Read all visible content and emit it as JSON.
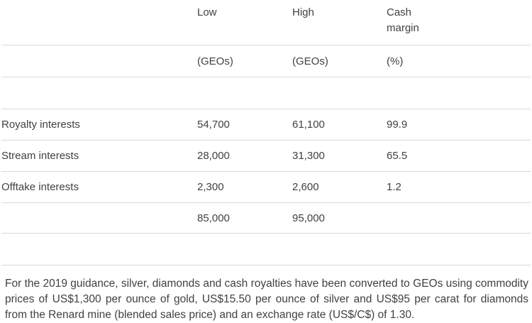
{
  "table": {
    "columns": {
      "low": {
        "label": "Low",
        "unit": "(GEOs)"
      },
      "high": {
        "label": "High",
        "unit": "(GEOs)"
      },
      "margin": {
        "label": "Cash margin",
        "unit": "(%)"
      }
    },
    "rows": [
      {
        "label": "Royalty interests",
        "low": "54,700",
        "high": "61,100",
        "margin": "99.9"
      },
      {
        "label": "Stream interests",
        "low": "28,000",
        "high": "31,300",
        "margin": "65.5"
      },
      {
        "label": "Offtake interests",
        "low": "2,300",
        "high": "2,600",
        "margin": "1.2"
      }
    ],
    "totals": {
      "low": "85,000",
      "high": "95,000"
    }
  },
  "footnote": "For the 2019 guidance, silver, diamonds and cash royalties have been converted to GEOs using commodity prices of US$1,300 per ounce of gold, US$15.50 per ounce of silver and US$95 per carat for diamonds from the Renard mine (blended sales price) and an exchange rate (US$/C$) of 1.30.",
  "colors": {
    "text": "#414141",
    "border": "#d9d9d9",
    "background": "#ffffff"
  }
}
